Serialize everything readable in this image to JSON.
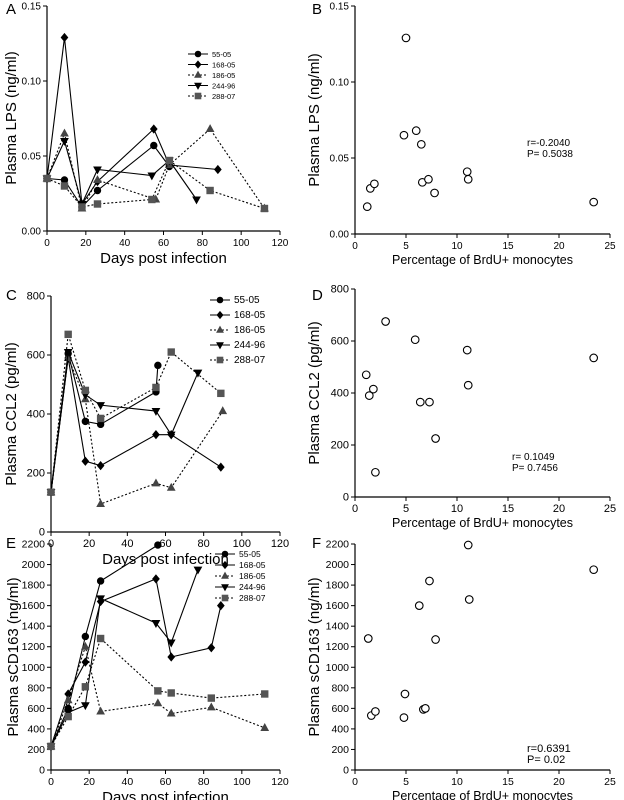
{
  "chart_data": [
    {
      "panel": "A",
      "type": "line",
      "xlabel": "Days post infection",
      "ylabel": "Plasma LPS (ng/ml)",
      "xlim": [
        0,
        120
      ],
      "ylim": [
        0,
        0.15
      ],
      "xticks": [
        0,
        20,
        40,
        60,
        80,
        100,
        120
      ],
      "yticks": [
        0.0,
        0.05,
        0.1,
        0.15
      ],
      "ytick_labels": [
        "0.00",
        "0.05",
        "0.10",
        "0.15"
      ],
      "legend": "top-right",
      "series": [
        {
          "name": "55-05",
          "marker": "circle",
          "dash": "solid",
          "x": [
            0,
            9,
            18,
            26,
            55,
            63
          ],
          "y": [
            0.035,
            0.034,
            0.016,
            0.027,
            0.057,
            0.043
          ]
        },
        {
          "name": "168-05",
          "marker": "diamond",
          "dash": "solid",
          "x": [
            0,
            9,
            18,
            26,
            55,
            63,
            88
          ],
          "y": [
            0.035,
            0.129,
            0.018,
            0.033,
            0.068,
            0.044,
            0.041
          ]
        },
        {
          "name": "186-05",
          "marker": "triangle",
          "dash": "dotted",
          "x": [
            0,
            9,
            18,
            26,
            56,
            63,
            84,
            112
          ],
          "y": [
            0.035,
            0.065,
            0.015,
            0.034,
            0.021,
            0.044,
            0.068,
            0.015
          ]
        },
        {
          "name": "244-96",
          "marker": "triangle-down",
          "dash": "solid",
          "x": [
            0,
            9,
            18,
            26,
            54,
            63,
            77
          ],
          "y": [
            0.035,
            0.06,
            0.018,
            0.041,
            0.037,
            0.047,
            0.021
          ]
        },
        {
          "name": "288-07",
          "marker": "square",
          "dash": "dotted",
          "x": [
            0,
            9,
            18,
            26,
            54,
            63,
            84,
            112
          ],
          "y": [
            0.035,
            0.03,
            0.016,
            0.018,
            0.021,
            0.047,
            0.027,
            0.015
          ]
        }
      ]
    },
    {
      "panel": "B",
      "type": "scatter",
      "xlabel": "Percentage of BrdU+ monocytes",
      "ylabel": "Plasma LPS (ng/ml)",
      "xlim": [
        0,
        25
      ],
      "ylim": [
        0,
        0.15
      ],
      "xticks": [
        0,
        5,
        10,
        15,
        20,
        25
      ],
      "yticks": [
        0.0,
        0.05,
        0.1,
        0.15
      ],
      "ytick_labels": [
        "0.00",
        "0.05",
        "0.10",
        "0.15"
      ],
      "annotation": [
        "r=-0.2040",
        "P= 0.5038"
      ],
      "x": [
        1.2,
        1.5,
        1.9,
        4.8,
        5.0,
        6.0,
        6.5,
        6.6,
        7.2,
        7.8,
        11.0,
        11.1,
        23.4
      ],
      "y": [
        0.018,
        0.03,
        0.033,
        0.065,
        0.129,
        0.068,
        0.059,
        0.034,
        0.036,
        0.027,
        0.041,
        0.036,
        0.021
      ]
    },
    {
      "panel": "C",
      "type": "line",
      "xlabel": "Days post infection",
      "ylabel": "Plasma CCL2 (pg/ml)",
      "xlim": [
        0,
        120
      ],
      "ylim": [
        0,
        800
      ],
      "xticks": [
        0,
        20,
        40,
        60,
        80,
        100,
        120
      ],
      "yticks": [
        0,
        200,
        400,
        600,
        800
      ],
      "ytick_labels": [
        "0",
        "200",
        "400",
        "600",
        "800"
      ],
      "legend": "top-right",
      "series": [
        {
          "name": "55-05",
          "marker": "circle",
          "dash": "solid",
          "x": [
            0,
            9,
            18,
            26,
            55,
            56
          ],
          "y": [
            135,
            605,
            375,
            365,
            475,
            565
          ]
        },
        {
          "name": "168-05",
          "marker": "diamond",
          "dash": "solid",
          "x": [
            0,
            9,
            18,
            26,
            55,
            63,
            89
          ],
          "y": [
            135,
            590,
            240,
            225,
            330,
            330,
            220
          ]
        },
        {
          "name": "186-05",
          "marker": "triangle",
          "dash": "dotted",
          "x": [
            0,
            9,
            18,
            26,
            55,
            63,
            90
          ],
          "y": [
            135,
            590,
            450,
            95,
            165,
            150,
            410
          ]
        },
        {
          "name": "244-96",
          "marker": "triangle-down",
          "dash": "solid",
          "x": [
            0,
            9,
            18,
            26,
            55,
            63,
            77
          ],
          "y": [
            135,
            610,
            465,
            430,
            410,
            330,
            540
          ]
        },
        {
          "name": "288-07",
          "marker": "square",
          "dash": "dotted",
          "x": [
            0,
            9,
            18,
            26,
            55,
            63,
            89
          ],
          "y": [
            135,
            670,
            480,
            385,
            490,
            610,
            470
          ]
        }
      ]
    },
    {
      "panel": "D",
      "type": "scatter",
      "xlabel": "Percentage of BrdU+ monocytes",
      "ylabel": "Plasma CCL2 (pg/ml)",
      "xlim": [
        0,
        25
      ],
      "ylim": [
        0,
        800
      ],
      "xticks": [
        0,
        5,
        10,
        15,
        20,
        25
      ],
      "yticks": [
        0,
        200,
        400,
        600,
        800
      ],
      "ytick_labels": [
        "0",
        "200",
        "400",
        "600",
        "800"
      ],
      "annotation": [
        "r= 0.1049",
        "P= 0.7456"
      ],
      "x": [
        1.1,
        1.4,
        1.8,
        2.0,
        3.0,
        5.9,
        6.4,
        7.3,
        7.9,
        11.0,
        11.1,
        23.4
      ],
      "y": [
        470,
        390,
        415,
        95,
        675,
        605,
        365,
        365,
        225,
        565,
        430,
        535
      ]
    },
    {
      "panel": "E",
      "type": "line",
      "xlabel": "Days post infection",
      "ylabel": "Plasma sCD163 (ng/ml)",
      "xlim": [
        0,
        120
      ],
      "ylim": [
        0,
        2200
      ],
      "xticks": [
        0,
        20,
        40,
        60,
        80,
        100,
        120
      ],
      "yticks": [
        0,
        200,
        400,
        600,
        800,
        1000,
        1200,
        1400,
        1600,
        1800,
        2000,
        2200
      ],
      "ytick_labels": [
        "0",
        "200",
        "400",
        "600",
        "800",
        "1000",
        "1200",
        "1400",
        "1600",
        "1800",
        "2000",
        "2200"
      ],
      "legend": "top-right",
      "series": [
        {
          "name": "55-05",
          "marker": "circle",
          "dash": "solid",
          "x": [
            0,
            9,
            18,
            26,
            56
          ],
          "y": [
            230,
            600,
            1300,
            1840,
            2190
          ]
        },
        {
          "name": "168-05",
          "marker": "diamond",
          "dash": "solid",
          "x": [
            0,
            9,
            18,
            26,
            55,
            63,
            84,
            89
          ],
          "y": [
            230,
            740,
            1050,
            1640,
            1860,
            1100,
            1190,
            1600
          ]
        },
        {
          "name": "186-05",
          "marker": "triangle",
          "dash": "dotted",
          "x": [
            0,
            9,
            18,
            26,
            56,
            63,
            84,
            112
          ],
          "y": [
            230,
            680,
            1200,
            570,
            650,
            550,
            610,
            410
          ]
        },
        {
          "name": "244-96",
          "marker": "triangle-down",
          "dash": "solid",
          "x": [
            0,
            9,
            18,
            26,
            55,
            63,
            77
          ],
          "y": [
            230,
            560,
            630,
            1670,
            1430,
            1240,
            1950
          ]
        },
        {
          "name": "288-07",
          "marker": "square",
          "dash": "dotted",
          "x": [
            0,
            9,
            18,
            26,
            56,
            63,
            84,
            112
          ],
          "y": [
            230,
            520,
            810,
            1280,
            770,
            750,
            700,
            740
          ]
        }
      ]
    },
    {
      "panel": "F",
      "type": "scatter",
      "xlabel": "Percentage of BrdU+ monocytes",
      "ylabel": "Plasma sCD163 (ng/ml)",
      "xlim": [
        0,
        25
      ],
      "ylim": [
        0,
        2200
      ],
      "xticks": [
        0,
        5,
        10,
        15,
        20,
        25
      ],
      "yticks": [
        0,
        200,
        400,
        600,
        800,
        1000,
        1200,
        1400,
        1600,
        1800,
        2000,
        2200
      ],
      "ytick_labels": [
        "0",
        "200",
        "400",
        "600",
        "800",
        "1000",
        "1200",
        "1400",
        "1600",
        "1800",
        "2000",
        "2200"
      ],
      "annotation": [
        "r=0.6391",
        "P= 0.02"
      ],
      "x": [
        1.3,
        1.6,
        2.0,
        4.8,
        4.9,
        6.3,
        6.7,
        6.9,
        7.3,
        7.9,
        11.1,
        11.2,
        23.4
      ],
      "y": [
        1280,
        530,
        570,
        510,
        740,
        1600,
        590,
        600,
        1840,
        1270,
        2190,
        1660,
        1950
      ]
    }
  ]
}
